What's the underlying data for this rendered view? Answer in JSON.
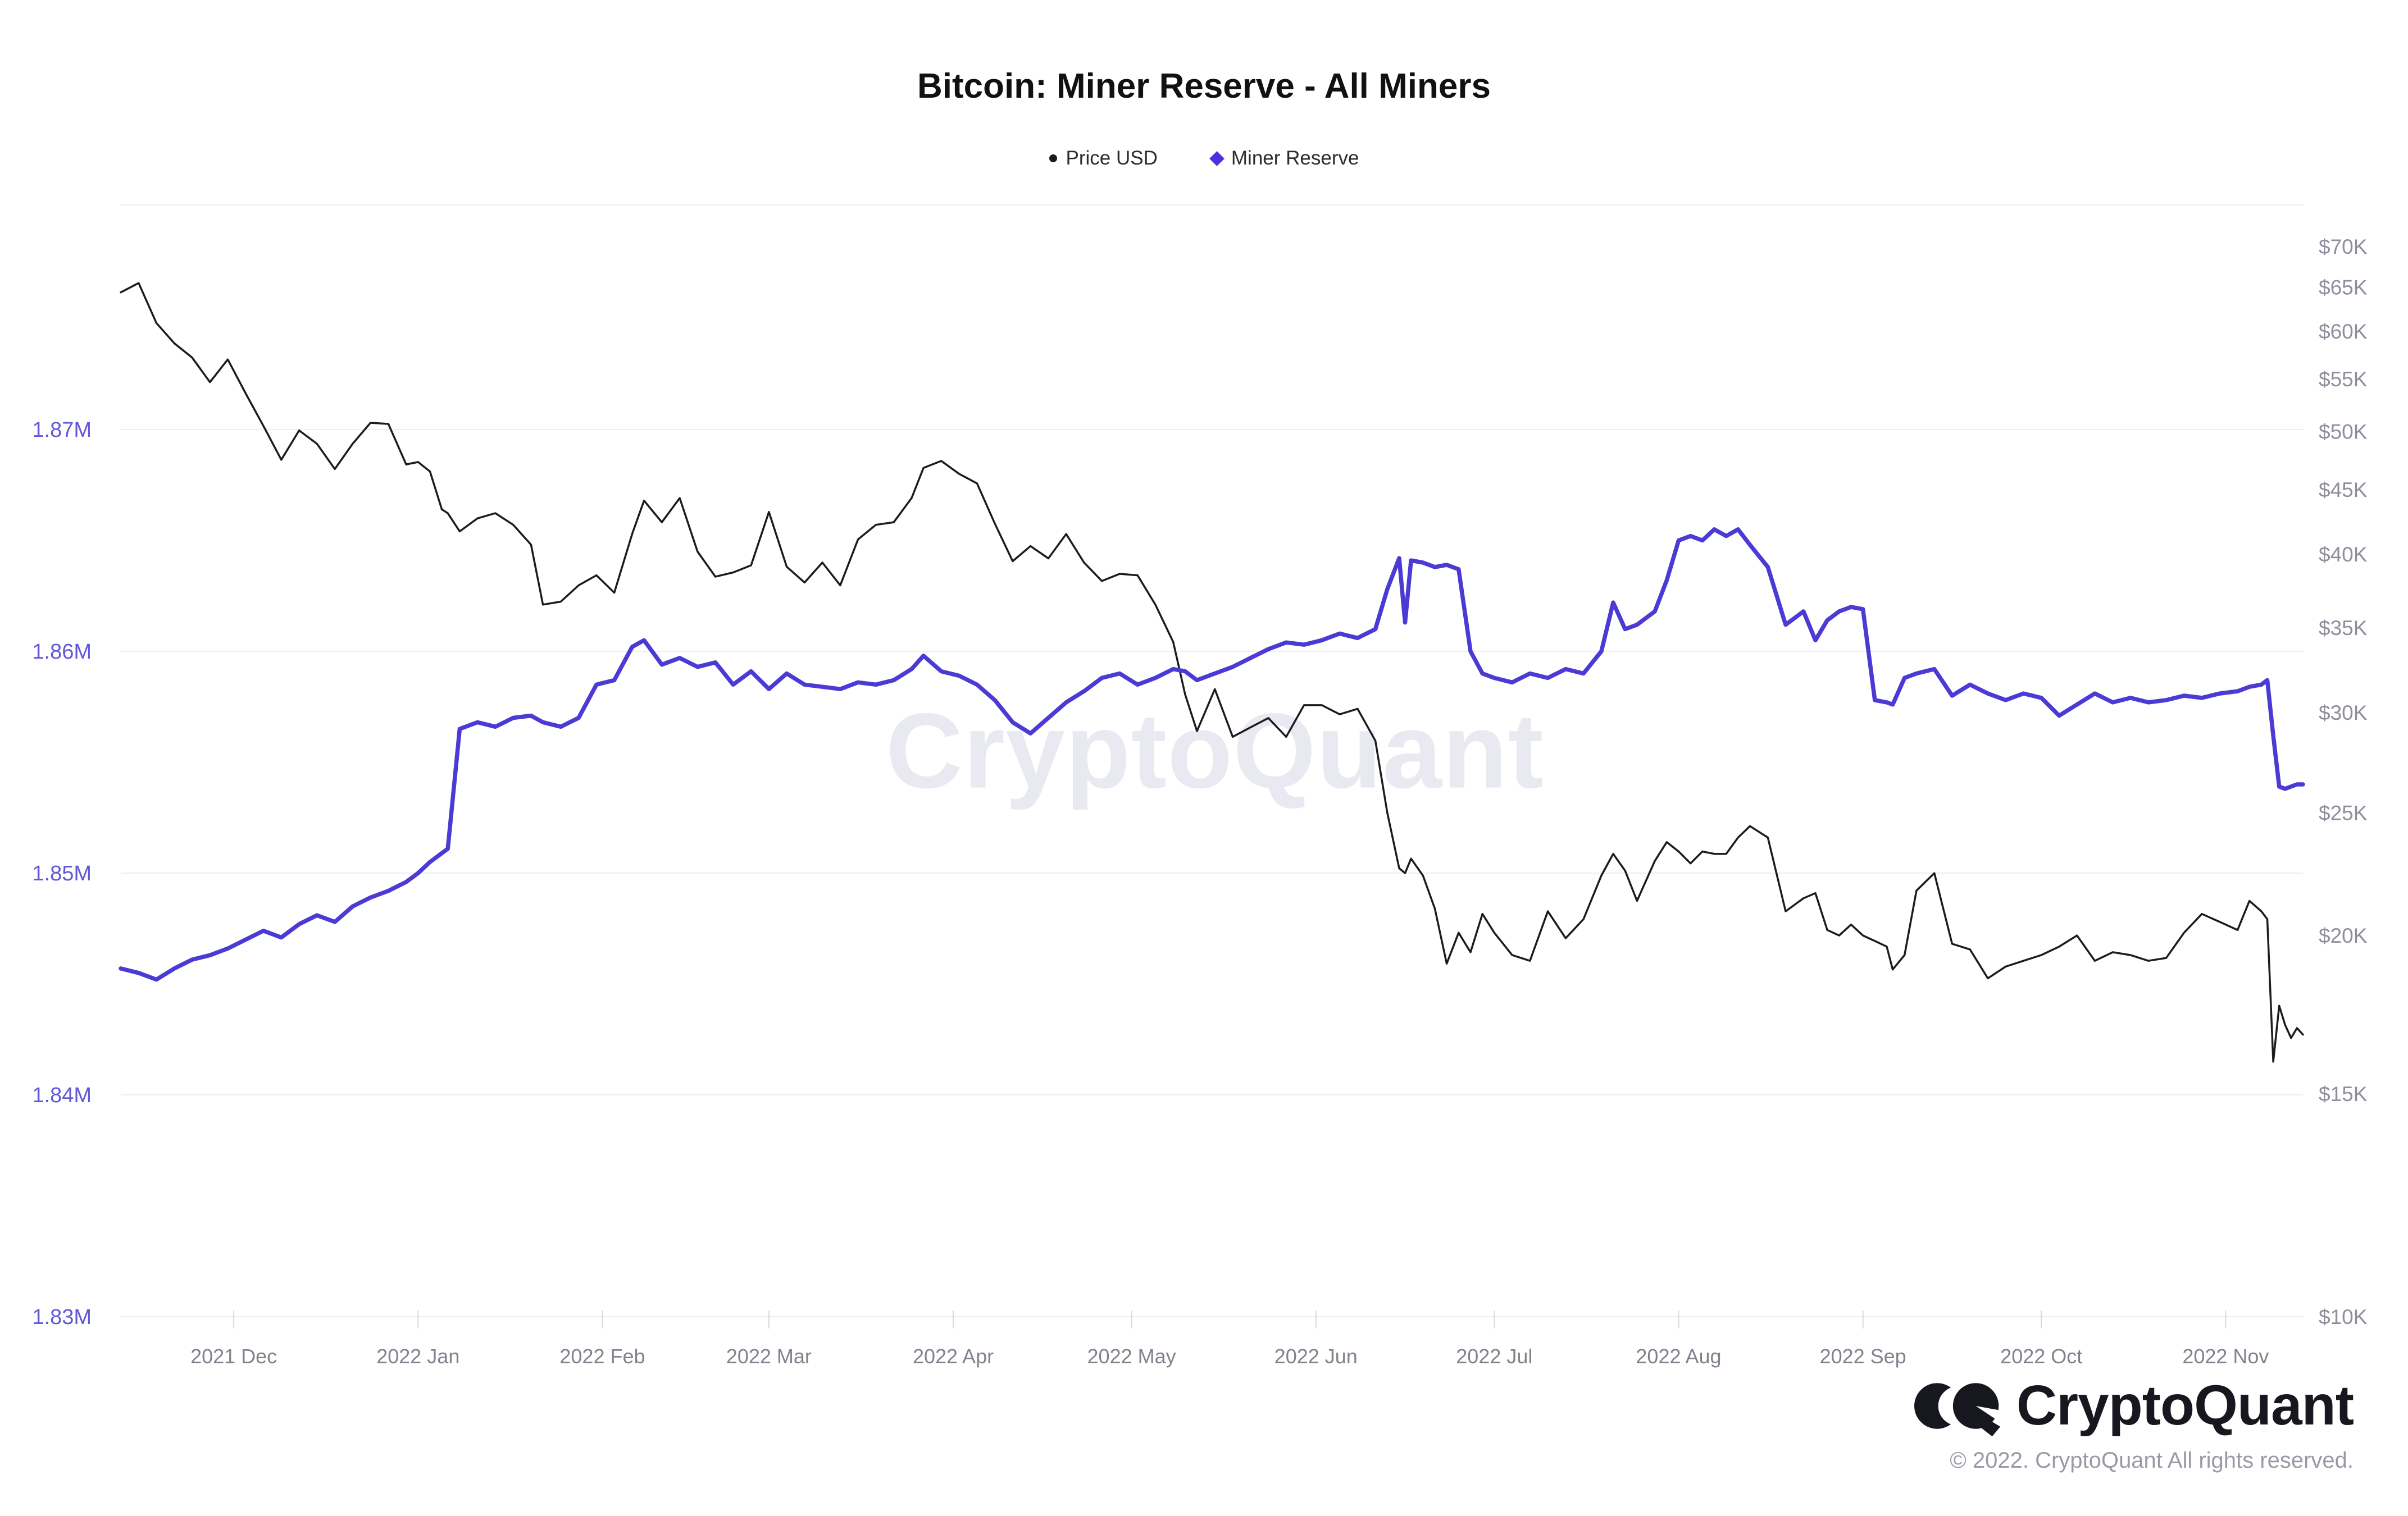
{
  "title": "Bitcoin: Miner Reserve - All Miners",
  "legend": [
    {
      "label": "Price USD",
      "marker": "dot",
      "color": "#1c1c1e"
    },
    {
      "label": "Miner Reserve",
      "marker": "diamond",
      "color": "#4734e0"
    }
  ],
  "watermark": "CryptoQuant",
  "footer": {
    "logo_text": "CryptoQuant",
    "copyright": "© 2022. CryptoQuant All rights reserved."
  },
  "chart_data": {
    "type": "line",
    "title": "Bitcoin: Miner Reserve - All Miners",
    "x_axis": {
      "start_date": "2021-11-12",
      "end_date": "2022-11-14",
      "total_days": 367,
      "month_ticks": [
        {
          "label": "2021 Dec",
          "day": 19
        },
        {
          "label": "2022 Jan",
          "day": 50
        },
        {
          "label": "2022 Feb",
          "day": 81
        },
        {
          "label": "2022 Mar",
          "day": 109
        },
        {
          "label": "2022 Apr",
          "day": 140
        },
        {
          "label": "2022 May",
          "day": 170
        },
        {
          "label": "2022 Jun",
          "day": 201
        },
        {
          "label": "2022 Jul",
          "day": 231
        },
        {
          "label": "2022 Aug",
          "day": 262
        },
        {
          "label": "2022 Sep",
          "day": 293
        },
        {
          "label": "2022 Oct",
          "day": 323
        },
        {
          "label": "2022 Nov",
          "day": 354
        }
      ],
      "label_color": "#82828e"
    },
    "left_axis": {
      "name": "Miner Reserve",
      "unit": "M BTC",
      "scale": "linear",
      "label_color": "#6257d6",
      "ticks": [
        {
          "label": "1.87M",
          "value": 1.87
        },
        {
          "label": "1.86M",
          "value": 1.86
        },
        {
          "label": "1.85M",
          "value": 1.85
        },
        {
          "label": "1.84M",
          "value": 1.84
        },
        {
          "label": "1.83M",
          "value": 1.83
        }
      ]
    },
    "right_axis": {
      "name": "Price USD",
      "unit": "thousand USD",
      "scale": "log",
      "label_color": "#8e8e9c",
      "ticks": [
        {
          "label": "$70K",
          "value": 70
        },
        {
          "label": "$65K",
          "value": 65
        },
        {
          "label": "$60K",
          "value": 60
        },
        {
          "label": "$55K",
          "value": 55
        },
        {
          "label": "$50K",
          "value": 50
        },
        {
          "label": "$45K",
          "value": 45
        },
        {
          "label": "$40K",
          "value": 40
        },
        {
          "label": "$35K",
          "value": 35
        },
        {
          "label": "$30K",
          "value": 30
        },
        {
          "label": "$25K",
          "value": 25
        },
        {
          "label": "$20K",
          "value": 20
        },
        {
          "label": "$15K",
          "value": 15
        },
        {
          "label": "$10K",
          "value": 10
        }
      ]
    },
    "grid": {
      "color": "#ededf2",
      "tick_color": "#d8d8de",
      "top_border": true
    },
    "t_days": [
      0,
      3,
      6,
      9,
      12,
      15,
      18,
      21,
      24,
      27,
      30,
      33,
      36,
      39,
      42,
      45,
      48,
      50,
      52,
      54,
      55,
      57,
      60,
      63,
      66,
      69,
      71,
      74,
      77,
      80,
      83,
      86,
      88,
      91,
      94,
      97,
      100,
      103,
      106,
      109,
      112,
      115,
      118,
      121,
      124,
      127,
      130,
      133,
      135,
      138,
      141,
      144,
      147,
      150,
      153,
      156,
      159,
      162,
      165,
      168,
      171,
      174,
      177,
      179,
      181,
      184,
      187,
      190,
      193,
      196,
      199,
      202,
      205,
      208,
      211,
      213,
      215,
      216,
      217,
      219,
      221,
      223,
      225,
      227,
      229,
      231,
      234,
      237,
      240,
      243,
      246,
      249,
      251,
      253,
      255,
      258,
      260,
      262,
      264,
      266,
      268,
      270,
      272,
      274,
      277,
      280,
      283,
      285,
      287,
      289,
      291,
      293,
      295,
      297,
      298,
      300,
      302,
      305,
      308,
      311,
      314,
      317,
      320,
      323,
      326,
      329,
      332,
      335,
      338,
      341,
      344,
      347,
      350,
      353,
      356,
      358,
      360,
      361,
      362,
      363,
      364,
      365,
      366,
      367
    ],
    "series": [
      {
        "name": "Price USD",
        "axis": "right",
        "color": "#1c1c1e",
        "stroke_width": 3.5,
        "values": [
          64.4,
          65.5,
          60.9,
          58.7,
          57.2,
          54.7,
          57.0,
          53.6,
          50.5,
          47.5,
          50.1,
          48.9,
          46.7,
          48.9,
          50.8,
          50.7,
          47.1,
          47.3,
          46.5,
          43.4,
          43.1,
          41.7,
          42.7,
          43.1,
          42.2,
          40.7,
          36.5,
          36.7,
          37.8,
          38.5,
          37.3,
          41.5,
          44.1,
          42.4,
          44.3,
          40.2,
          38.4,
          38.7,
          39.2,
          43.2,
          39.1,
          38.0,
          39.4,
          37.8,
          41.1,
          42.2,
          42.4,
          44.3,
          46.8,
          47.4,
          46.3,
          45.5,
          42.3,
          39.5,
          40.6,
          39.7,
          41.5,
          39.4,
          38.1,
          38.6,
          38.5,
          36.5,
          34.1,
          31.0,
          29.0,
          31.3,
          28.7,
          29.2,
          29.7,
          28.7,
          30.4,
          30.4,
          29.9,
          30.2,
          28.5,
          25.0,
          22.6,
          22.4,
          23.0,
          22.3,
          21.0,
          19.0,
          20.1,
          19.4,
          20.8,
          20.1,
          19.3,
          19.1,
          20.9,
          19.9,
          20.6,
          22.3,
          23.2,
          22.5,
          21.3,
          22.9,
          23.7,
          23.3,
          22.8,
          23.3,
          23.2,
          23.2,
          23.9,
          24.4,
          23.9,
          20.9,
          21.4,
          21.6,
          20.2,
          20.0,
          20.4,
          20.0,
          19.8,
          19.6,
          18.8,
          19.3,
          21.7,
          22.4,
          19.7,
          19.5,
          18.5,
          18.9,
          19.1,
          19.3,
          19.6,
          20.0,
          19.1,
          19.4,
          19.3,
          19.1,
          19.2,
          20.1,
          20.8,
          20.5,
          20.2,
          21.3,
          20.9,
          20.6,
          15.9,
          17.6,
          17.0,
          16.6,
          16.9,
          16.7
        ]
      },
      {
        "name": "Miner Reserve",
        "axis": "left",
        "color": "#4b3ad4",
        "stroke_width": 7.5,
        "values": [
          1.8457,
          1.8455,
          1.8452,
          1.8457,
          1.8461,
          1.8463,
          1.8466,
          1.847,
          1.8474,
          1.8471,
          1.8477,
          1.8481,
          1.8478,
          1.8485,
          1.8489,
          1.8492,
          1.8496,
          1.85,
          1.8505,
          1.8509,
          1.8511,
          1.8565,
          1.8568,
          1.8566,
          1.857,
          1.8571,
          1.8568,
          1.8566,
          1.857,
          1.8585,
          1.8587,
          1.8602,
          1.8605,
          1.8594,
          1.8597,
          1.8593,
          1.8595,
          1.8585,
          1.8591,
          1.8583,
          1.859,
          1.8585,
          1.8584,
          1.8583,
          1.8586,
          1.8585,
          1.8587,
          1.8592,
          1.8598,
          1.8591,
          1.8589,
          1.8585,
          1.8578,
          1.8568,
          1.8563,
          1.857,
          1.8577,
          1.8582,
          1.8588,
          1.859,
          1.8585,
          1.8588,
          1.8592,
          1.8591,
          1.8587,
          1.859,
          1.8593,
          1.8597,
          1.8601,
          1.8604,
          1.8603,
          1.8605,
          1.8608,
          1.8606,
          1.861,
          1.8628,
          1.8642,
          1.8613,
          1.8641,
          1.864,
          1.8638,
          1.8639,
          1.8637,
          1.86,
          1.859,
          1.8588,
          1.8586,
          1.859,
          1.8588,
          1.8592,
          1.859,
          1.86,
          1.8622,
          1.861,
          1.8612,
          1.8618,
          1.8632,
          1.865,
          1.8652,
          1.865,
          1.8655,
          1.8652,
          1.8655,
          1.8648,
          1.8638,
          1.8612,
          1.8618,
          1.8605,
          1.8614,
          1.8618,
          1.862,
          1.8619,
          1.8578,
          1.8577,
          1.8576,
          1.8588,
          1.859,
          1.8592,
          1.858,
          1.8585,
          1.8581,
          1.8578,
          1.8581,
          1.8579,
          1.8571,
          1.8576,
          1.8581,
          1.8577,
          1.8579,
          1.8577,
          1.8578,
          1.858,
          1.8579,
          1.8581,
          1.8582,
          1.8584,
          1.8585,
          1.8587,
          1.8562,
          1.8539,
          1.8538,
          1.8539,
          1.854,
          1.854
        ]
      }
    ]
  }
}
